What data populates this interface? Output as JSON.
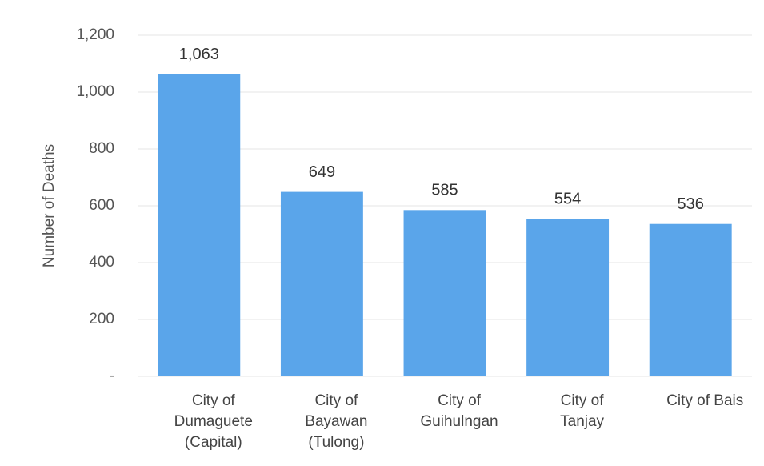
{
  "chart_data": {
    "type": "bar",
    "y_label": "Number of Deaths",
    "categories": [
      "City of\nDumaguete\n(Capital)",
      "City of\nBayawan\n(Tulong)",
      "City of\nGuihulngan",
      "City of\nTanjay",
      "City of Bais"
    ],
    "values": [
      1063,
      649,
      585,
      554,
      536
    ],
    "value_labels": [
      "1,063",
      "649",
      "585",
      "554",
      "536"
    ],
    "color": "#5aa5ea",
    "ylim": [
      0,
      1200
    ],
    "yticks": [
      {
        "value": 0,
        "label": "-"
      },
      200,
      400,
      600,
      800,
      {
        "value": 1000,
        "label": "1,000"
      },
      {
        "value": 1200,
        "label": "1,200"
      }
    ],
    "grid": true
  }
}
